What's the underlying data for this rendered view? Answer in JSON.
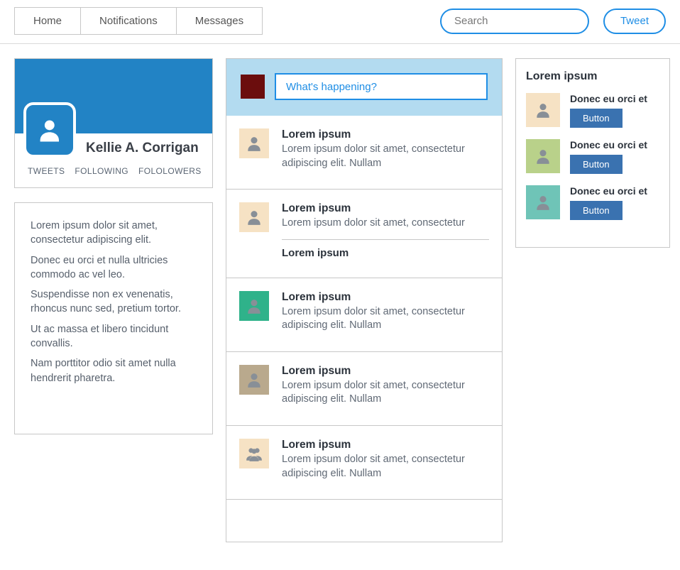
{
  "colors": {
    "banner": "#2283c5",
    "avatar_tile": "#2283c5",
    "compose_bg": "#b3dbf0",
    "compose_thumb": "#6b0d0d",
    "sugg_btn": "#3a72b0",
    "border": "#c7c7c7",
    "icon_gray": "#888f97",
    "avatar_bg_default": "#f6e2c4",
    "avatar_bg_green": "#2fb28a",
    "avatar_bg_tan": "#b9a98d",
    "sugg_avatar_0": "#f6e2c4",
    "sugg_avatar_1": "#b9d18a",
    "sugg_avatar_2": "#6fc4b7"
  },
  "nav": {
    "tabs": [
      "Home",
      "Notifications",
      "Messages"
    ],
    "search_placeholder": "Search",
    "tweet_label": "Tweet"
  },
  "profile": {
    "name": "Kellie A. Corrigan",
    "tabs": [
      "TWEETS",
      "FOLLOWING",
      "FOLOLOWERS"
    ]
  },
  "bio": [
    "Lorem ipsum dolor sit amet, consectetur adipiscing elit.",
    "Donec eu orci et nulla ultricies commodo ac vel leo.",
    "Suspendisse non ex venenatis, rhoncus nunc sed, pretium tortor.",
    "Ut ac massa et libero tincidunt convallis.",
    "Nam porttitor odio sit amet nulla hendrerit pharetra."
  ],
  "compose": {
    "placeholder": "What's happening?"
  },
  "feed": [
    {
      "user": "Lorem ipsum",
      "text": "Lorem ipsum dolor sit amet, consectetur adipiscing elit. Nullam",
      "avatar_bg": "#f6e2c4",
      "icon": "person"
    },
    {
      "user": "Lorem ipsum",
      "text": "Lorem ipsum dolor sit amet, consectetur",
      "avatar_bg": "#f6e2c4",
      "icon": "person",
      "sub": "Lorem ipsum"
    },
    {
      "user": "Lorem ipsum",
      "text": "Lorem ipsum dolor sit amet, consectetur adipiscing elit. Nullam",
      "avatar_bg": "#2fb28a",
      "icon": "person"
    },
    {
      "user": "Lorem ipsum",
      "text": "Lorem ipsum dolor sit amet, consectetur adipiscing elit. Nullam",
      "avatar_bg": "#b9a98d",
      "icon": "person"
    },
    {
      "user": "Lorem ipsum",
      "text": "Lorem ipsum dolor sit amet, consectetur adipiscing elit. Nullam",
      "avatar_bg": "#f6e2c4",
      "icon": "group"
    }
  ],
  "suggestions": {
    "title": "Lorem ipsum",
    "items": [
      {
        "name": "Donec eu orci et",
        "button": "Button",
        "avatar_bg": "#f6e2c4"
      },
      {
        "name": "Donec eu orci et",
        "button": "Button",
        "avatar_bg": "#b9d18a"
      },
      {
        "name": "Donec eu orci et",
        "button": "Button",
        "avatar_bg": "#6fc4b7"
      }
    ]
  }
}
